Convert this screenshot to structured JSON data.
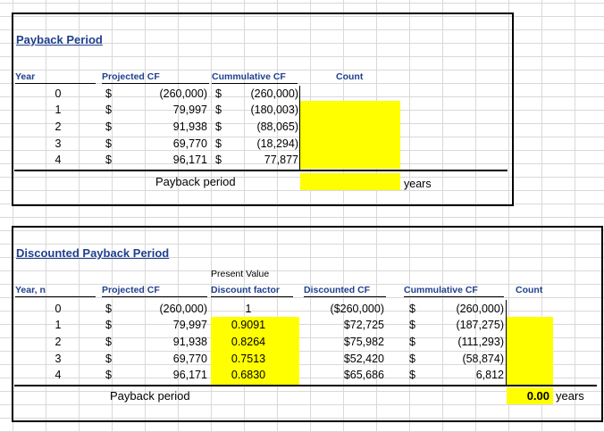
{
  "payback": {
    "title": "Payback Period",
    "headers": {
      "year": "Year",
      "projected": "Projected CF",
      "cumulative": "Cummulative CF",
      "count": "Count"
    },
    "currency": "$",
    "rows": [
      {
        "year": "0",
        "projected": "(260,000)",
        "cumulative": "(260,000)"
      },
      {
        "year": "1",
        "projected": "79,997",
        "cumulative": "(180,003)"
      },
      {
        "year": "2",
        "projected": "91,938",
        "cumulative": "(88,065)"
      },
      {
        "year": "3",
        "projected": "69,770",
        "cumulative": "(18,294)"
      },
      {
        "year": "4",
        "projected": "96,171",
        "cumulative": "77,877"
      }
    ],
    "result_label": "Payback period",
    "years_label": "years"
  },
  "discounted": {
    "title": "Discounted Payback Period",
    "present_value_label": "Present Value",
    "headers": {
      "year": "Year, n",
      "projected": "Projected CF",
      "discount_factor": "Discount factor",
      "discounted_cf": "Discounted CF",
      "cumulative": "Cummulative CF",
      "count": "Count"
    },
    "currency": "$",
    "rows": [
      {
        "year": "0",
        "projected": "(260,000)",
        "factor": "1",
        "discounted": "($260,000)",
        "cumulative": "(260,000)"
      },
      {
        "year": "1",
        "projected": "79,997",
        "factor": "0.9091",
        "discounted": "$72,725",
        "cumulative": "(187,275)"
      },
      {
        "year": "2",
        "projected": "91,938",
        "factor": "0.8264",
        "discounted": "$75,982",
        "cumulative": "(111,293)"
      },
      {
        "year": "3",
        "projected": "69,770",
        "factor": "0.7513",
        "discounted": "$52,420",
        "cumulative": "(58,874)"
      },
      {
        "year": "4",
        "projected": "96,171",
        "factor": "0.6830",
        "discounted": "$65,686",
        "cumulative": "6,812"
      }
    ],
    "result_label": "Payback period",
    "result_value": "0.00",
    "years_label": "years"
  },
  "colors": {
    "highlight": "#ffff00",
    "header_text": "#1f3f8f"
  }
}
